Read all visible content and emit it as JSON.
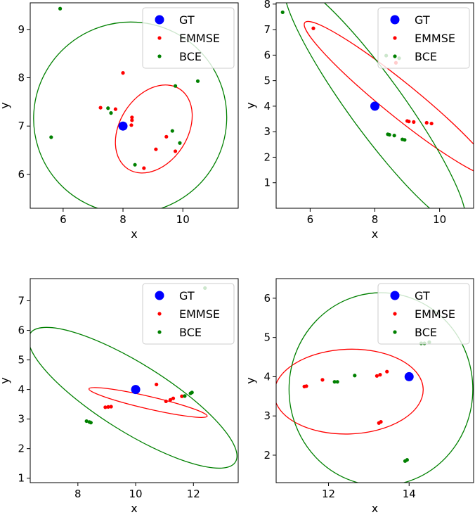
{
  "chart_data": [
    {
      "type": "scatter",
      "xlabel": "x",
      "ylabel": "y",
      "xlim": [
        4.9,
        11.85
      ],
      "ylim": [
        5.3,
        9.55
      ],
      "xticks": [
        6,
        8,
        10
      ],
      "yticks": [
        6,
        7,
        8,
        9
      ],
      "legend_position": "top-right",
      "series": [
        {
          "name": "GT",
          "color": "#0000ff",
          "marker_size": "large",
          "points": [
            [
              8.0,
              7.0
            ]
          ]
        },
        {
          "name": "EMMSE",
          "color": "#ff0000",
          "marker_size": "small",
          "points": [
            [
              7.25,
              7.38
            ],
            [
              7.75,
              7.35
            ],
            [
              8.0,
              8.1
            ],
            [
              8.3,
              7.18
            ],
            [
              8.3,
              7.12
            ],
            [
              8.28,
              7.02
            ],
            [
              8.7,
              6.13
            ],
            [
              9.1,
              6.52
            ],
            [
              9.45,
              6.78
            ],
            [
              9.75,
              6.48
            ]
          ]
        },
        {
          "name": "BCE",
          "color": "#008000",
          "marker_size": "small",
          "points": [
            [
              5.9,
              9.43
            ],
            [
              5.6,
              6.77
            ],
            [
              7.5,
              7.37
            ],
            [
              7.6,
              7.27
            ],
            [
              8.4,
              6.2
            ],
            [
              9.65,
              6.9
            ],
            [
              9.75,
              7.83
            ],
            [
              9.9,
              6.65
            ],
            [
              10.5,
              7.93
            ]
          ]
        }
      ],
      "ellipses": [
        {
          "series": "EMMSE",
          "color": "#ff0000",
          "center": [
            9.03,
            6.94
          ],
          "rx": 1.59,
          "ry": 0.7,
          "rotation_deg": -57
        },
        {
          "series": "BCE",
          "color": "#008000",
          "center": [
            8.24,
            7.17
          ],
          "rx": 3.23,
          "ry": 1.98,
          "rotation_deg": -18
        }
      ]
    },
    {
      "type": "scatter",
      "xlabel": "x",
      "ylabel": "y",
      "xlim": [
        4.95,
        11.05
      ],
      "ylim": [
        0.0,
        8.05
      ],
      "xticks": [
        6,
        8,
        10
      ],
      "yticks": [
        1,
        2,
        3,
        4,
        5,
        6,
        7,
        8
      ],
      "legend_position": "top-right",
      "series": [
        {
          "name": "GT",
          "color": "#0000ff",
          "marker_size": "large",
          "points": [
            [
              8.0,
              4.0
            ]
          ]
        },
        {
          "name": "EMMSE",
          "color": "#ff0000",
          "marker_size": "small",
          "points": [
            [
              6.1,
              7.05
            ],
            [
              8.65,
              5.7
            ],
            [
              9.0,
              3.42
            ],
            [
              9.05,
              3.4
            ],
            [
              9.2,
              3.38
            ],
            [
              9.6,
              3.35
            ],
            [
              9.75,
              3.32
            ]
          ]
        },
        {
          "name": "BCE",
          "color": "#008000",
          "marker_size": "small",
          "points": [
            [
              5.15,
              7.68
            ],
            [
              8.35,
              5.98
            ],
            [
              8.75,
              5.88
            ],
            [
              8.4,
              2.9
            ],
            [
              8.45,
              2.88
            ],
            [
              8.6,
              2.85
            ],
            [
              8.85,
              2.7
            ],
            [
              8.92,
              2.68
            ]
          ]
        }
      ],
      "ellipses": [
        {
          "series": "EMMSE",
          "color": "#ff0000",
          "center": [
            8.75,
            4.28
          ],
          "rx": 3.75,
          "ry": 0.66,
          "rotation_deg": 39
        },
        {
          "series": "BCE",
          "color": "#008000",
          "center": [
            8.0,
            4.1
          ],
          "rx": 4.63,
          "ry": 1.07,
          "rotation_deg": 54
        }
      ]
    },
    {
      "type": "scatter",
      "xlabel": "x",
      "ylabel": "y",
      "xlim": [
        6.35,
        13.55
      ],
      "ylim": [
        0.85,
        7.75
      ],
      "xticks": [
        8,
        10,
        12
      ],
      "yticks": [
        1,
        2,
        3,
        4,
        5,
        6,
        7
      ],
      "legend_position": "top-right",
      "series": [
        {
          "name": "GT",
          "color": "#0000ff",
          "marker_size": "large",
          "points": [
            [
              10.0,
              4.0
            ]
          ]
        },
        {
          "name": "EMMSE",
          "color": "#ff0000",
          "marker_size": "small",
          "points": [
            [
              8.95,
              3.4
            ],
            [
              9.05,
              3.41
            ],
            [
              9.15,
              3.42
            ],
            [
              10.72,
              4.17
            ],
            [
              11.05,
              3.6
            ],
            [
              11.2,
              3.65
            ],
            [
              11.3,
              3.7
            ],
            [
              11.6,
              3.77
            ]
          ]
        },
        {
          "name": "BCE",
          "color": "#008000",
          "marker_size": "small",
          "points": [
            [
              8.3,
              2.93
            ],
            [
              8.4,
              2.9
            ],
            [
              8.45,
              2.88
            ],
            [
              11.7,
              3.78
            ],
            [
              11.9,
              3.87
            ],
            [
              11.95,
              3.9
            ],
            [
              12.4,
              7.43
            ]
          ]
        }
      ],
      "ellipses": [
        {
          "series": "EMMSE",
          "color": "#ff0000",
          "center": [
            10.43,
            3.56
          ],
          "rx": 2.1,
          "ry": 0.21,
          "rotation_deg": 13
        },
        {
          "series": "BCE",
          "color": "#008000",
          "center": [
            9.9,
            3.72
          ],
          "rx": 4.19,
          "ry": 1.15,
          "rotation_deg": 32
        }
      ]
    },
    {
      "type": "scatter",
      "xlabel": "x",
      "ylabel": "y",
      "xlim": [
        10.7,
        15.6
      ],
      "ylim": [
        1.3,
        6.5
      ],
      "xticks": [
        12,
        14
      ],
      "yticks": [
        2,
        3,
        4,
        5,
        6
      ],
      "legend_position": "top-right",
      "series": [
        {
          "name": "GT",
          "color": "#0000ff",
          "marker_size": "large",
          "points": [
            [
              14.0,
              4.0
            ]
          ]
        },
        {
          "name": "EMMSE",
          "color": "#ff0000",
          "marker_size": "small",
          "points": [
            [
              11.4,
              3.75
            ],
            [
              11.45,
              3.76
            ],
            [
              11.85,
              3.92
            ],
            [
              13.2,
              4.02
            ],
            [
              13.28,
              4.05
            ],
            [
              13.45,
              4.13
            ],
            [
              13.25,
              2.82
            ],
            [
              13.3,
              2.85
            ]
          ]
        },
        {
          "name": "BCE",
          "color": "#008000",
          "marker_size": "small",
          "points": [
            [
              12.15,
              3.87
            ],
            [
              12.22,
              3.87
            ],
            [
              12.65,
              4.03
            ],
            [
              13.9,
              1.85
            ],
            [
              13.95,
              1.88
            ],
            [
              14.3,
              4.85
            ],
            [
              14.38,
              4.85
            ],
            [
              14.5,
              4.88
            ]
          ]
        }
      ],
      "ellipses": [
        {
          "series": "EMMSE",
          "color": "#ff0000",
          "center": [
            12.5,
            3.62
          ],
          "rx": 1.85,
          "ry": 1.08,
          "rotation_deg": -2
        },
        {
          "series": "BCE",
          "color": "#008000",
          "center": [
            13.3,
            3.68
          ],
          "rx": 2.28,
          "ry": 2.46,
          "rotation_deg": 0
        }
      ]
    }
  ]
}
